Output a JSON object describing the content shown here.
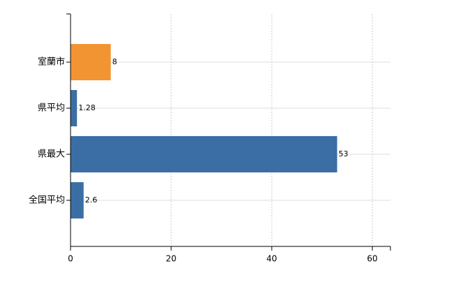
{
  "chart_data": {
    "type": "hbar",
    "categories": [
      "室蘭市",
      "県平均",
      "県最大",
      "全国平均"
    ],
    "values": [
      8,
      1.28,
      53,
      2.6
    ],
    "colors": [
      "#f39433",
      "#3a6ea5",
      "#3a6ea5",
      "#3a6ea5"
    ],
    "xlim": [
      0,
      63.6
    ],
    "xticks": [
      0,
      20,
      40,
      60
    ],
    "grid": true
  }
}
